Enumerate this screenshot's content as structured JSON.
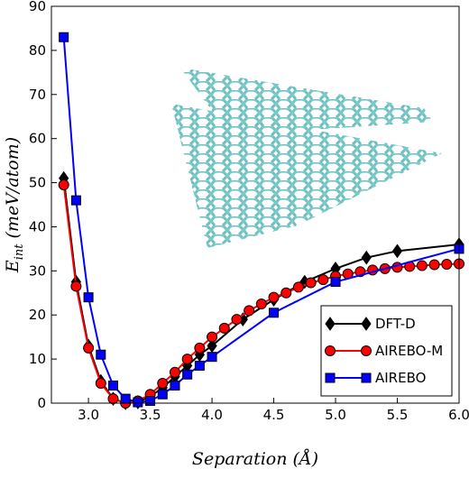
{
  "chart_data": {
    "type": "line",
    "xlabel": "Separation (Å)",
    "ylabel": "E",
    "ylabel_sub": "int",
    "ylabel_rest": " (meV/atom)",
    "xlim": [
      2.7,
      6.0
    ],
    "ylim": [
      0,
      90
    ],
    "xticks": [
      {
        "value": 3,
        "label": "3.0"
      },
      3.5,
      {
        "value": 4,
        "label": "4.0"
      },
      4.5,
      {
        "value": 5,
        "label": "5.0"
      },
      5.5,
      {
        "value": 6,
        "label": "6.0"
      }
    ],
    "yticks": [
      0,
      10,
      20,
      30,
      40,
      50,
      60,
      70,
      80,
      90
    ],
    "legend": "lower right",
    "series": [
      {
        "name": "DFT-D",
        "color": "#000000",
        "marker": "diamond",
        "x": [
          2.8,
          2.9,
          3.0,
          3.1,
          3.2,
          3.3,
          3.4,
          3.5,
          3.6,
          3.7,
          3.8,
          3.9,
          4.0,
          4.25,
          4.5,
          4.75,
          5.0,
          5.25,
          5.5,
          6.0
        ],
        "values": [
          51,
          27.5,
          13,
          5,
          1,
          0,
          0.2,
          1.5,
          3.5,
          6,
          8.5,
          11,
          13,
          19,
          23.5,
          27.5,
          30.5,
          33,
          34.5,
          36
        ]
      },
      {
        "name": "AIREBO-M",
        "color": "#ff0000",
        "marker": "circle",
        "x": [
          2.8,
          2.9,
          3.0,
          3.1,
          3.2,
          3.3,
          3.4,
          3.5,
          3.6,
          3.7,
          3.8,
          3.9,
          4.0,
          4.1,
          4.2,
          4.3,
          4.4,
          4.5,
          4.6,
          4.7,
          4.8,
          4.9,
          5.0,
          5.1,
          5.2,
          5.3,
          5.4,
          5.5,
          5.6,
          5.7,
          5.8,
          5.9,
          6.0
        ],
        "values": [
          49.5,
          26.5,
          12.5,
          4.5,
          1,
          0,
          0.5,
          2,
          4.5,
          7,
          10,
          12.5,
          15,
          17,
          19,
          21,
          22.5,
          24,
          25,
          26.3,
          27.3,
          28,
          28.8,
          29.3,
          29.8,
          30.2,
          30.5,
          30.8,
          31,
          31.2,
          31.4,
          31.5,
          31.6
        ]
      },
      {
        "name": "AIREBO",
        "color": "#0000ff",
        "marker": "square",
        "x": [
          2.8,
          2.9,
          3.0,
          3.1,
          3.2,
          3.3,
          3.4,
          3.5,
          3.6,
          3.7,
          3.8,
          3.9,
          4.0,
          4.5,
          5.0,
          6.0
        ],
        "values": [
          83,
          46,
          24,
          11,
          4,
          1,
          0.2,
          0.5,
          2,
          4,
          6.5,
          8.5,
          10.5,
          20.5,
          27.5,
          35
        ]
      }
    ]
  }
}
